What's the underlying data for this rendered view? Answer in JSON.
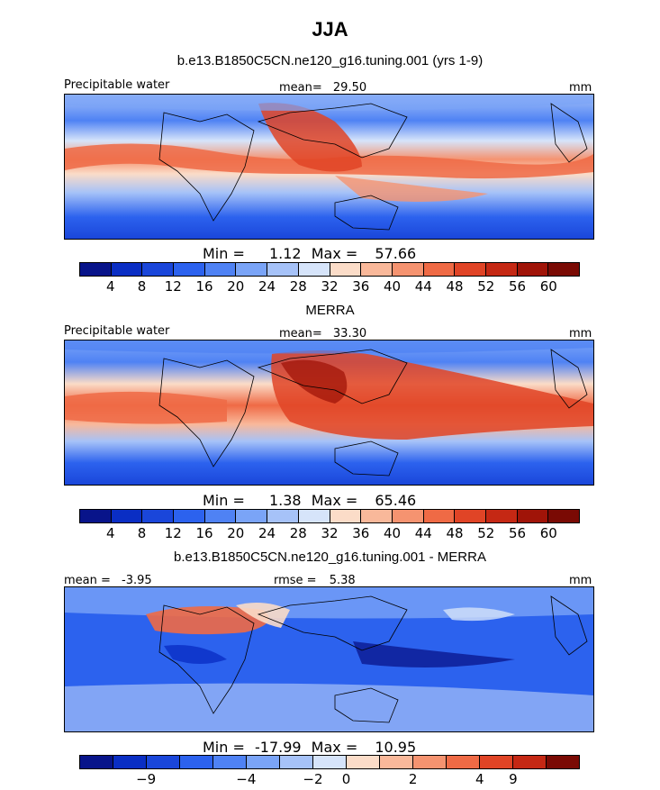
{
  "title": "JJA",
  "palette": {
    "seq": [
      "#08148a",
      "#0a2ec4",
      "#1a46da",
      "#2c62ee",
      "#4f82f4",
      "#7aa4f7",
      "#a6c2f8",
      "#d6e4fa",
      "#fbdcc8",
      "#f9b89a",
      "#f59370",
      "#ef6a45",
      "#e04426",
      "#c52814",
      "#a01408",
      "#7a0a04"
    ],
    "diff": [
      "#08148a",
      "#0a2ec4",
      "#1a46da",
      "#2c62ee",
      "#4f82f4",
      "#7aa4f7",
      "#a6c2f8",
      "#d6e4fa",
      "#fbdcc8",
      "#f9b89a",
      "#f59370",
      "#ef6a45",
      "#e04426",
      "#c52814",
      "#7a0a04"
    ]
  },
  "panel1": {
    "subtitle": "b.e13.B1850C5CN.ne120_g16.tuning.001 (yrs 1-9)",
    "left": "Precipitable water",
    "mean_label": "mean=",
    "mean_value": "29.50",
    "units": "mm",
    "min_label": "Min =",
    "min_value": "1.12",
    "max_label": "Max =",
    "max_value": "57.66",
    "tick_labels": [
      "4",
      "8",
      "12",
      "16",
      "20",
      "24",
      "28",
      "32",
      "36",
      "40",
      "44",
      "48",
      "52",
      "56",
      "60"
    ]
  },
  "panel2": {
    "subtitle": "MERRA",
    "left": "Precipitable water",
    "mean_label": "mean=",
    "mean_value": "33.30",
    "units": "mm",
    "min_label": "Min =",
    "min_value": "1.38",
    "max_label": "Max =",
    "max_value": "65.46",
    "tick_labels": [
      "4",
      "8",
      "12",
      "16",
      "20",
      "24",
      "28",
      "32",
      "36",
      "40",
      "44",
      "48",
      "52",
      "56",
      "60"
    ]
  },
  "panel3": {
    "subtitle": "b.e13.B1850C5CN.ne120_g16.tuning.001 - MERRA",
    "mean_label": "mean =",
    "mean_value": "-3.95",
    "rmse_label": "rmse =",
    "rmse_value": "5.38",
    "units": "mm",
    "min_label": "Min =",
    "min_value": "-17.99",
    "max_label": "Max =",
    "max_value": "10.95",
    "tick_labels": [
      "-9",
      "-4",
      "-2",
      "0",
      "2",
      "4",
      "9"
    ]
  }
}
